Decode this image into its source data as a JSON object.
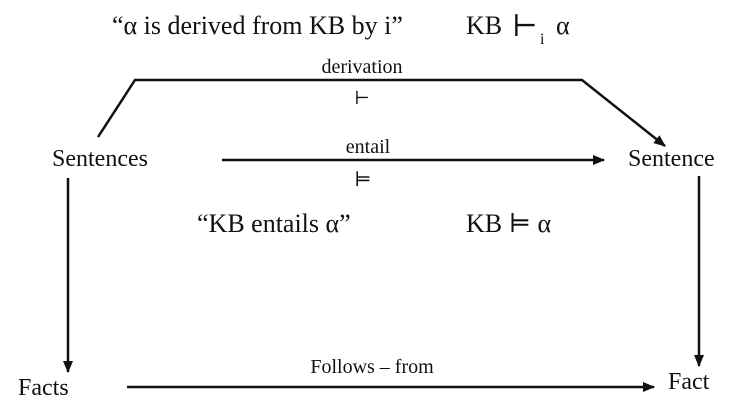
{
  "heading": {
    "quote": "“α is derived from KB by i”",
    "formula_kb": "KB",
    "formula_sym": "⊢",
    "formula_sub": "i",
    "formula_alpha": "α"
  },
  "edges": {
    "derivation": {
      "label": "derivation",
      "symbol": "⊢"
    },
    "entail": {
      "label": "entail",
      "symbol": "⊨"
    },
    "follows": {
      "label": "Follows – from"
    }
  },
  "nodes": {
    "sentences": "Sentences",
    "sentence": "Sentence",
    "facts": "Facts",
    "fact": "Fact"
  },
  "entails_caption": {
    "quote": "“KB entails α”",
    "formula": "KB ⊨ α"
  },
  "colors": {
    "ink": "#111111",
    "background": "#ffffff"
  }
}
